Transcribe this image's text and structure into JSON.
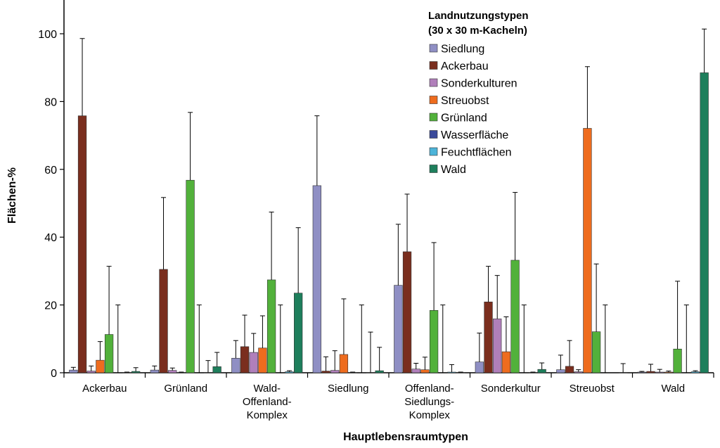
{
  "chart_data": {
    "type": "bar",
    "xlabel": "Hauptlebensraumtypen",
    "ylabel": "Flächen-%",
    "ylim": [
      0,
      110
    ],
    "yticks": [
      0,
      20,
      40,
      60,
      80,
      100
    ],
    "grid": false,
    "legend_position": "top-right",
    "legend_title": [
      "Landnutzungstypen",
      "(30 x 30 m-Kacheln)"
    ],
    "categories": [
      [
        "Ackerbau"
      ],
      [
        "Grünland"
      ],
      [
        "Wald-",
        "Offenland-",
        "Komplex"
      ],
      [
        "Siedlung"
      ],
      [
        "Offenland-",
        "Siedlungs-",
        "Komplex"
      ],
      [
        "Sonderkultur"
      ],
      [
        "Streuobst"
      ],
      [
        "Wald"
      ]
    ],
    "series": [
      {
        "name": "Siedlung",
        "color": "#8f8fc4",
        "values": [
          0.8,
          0.8,
          4.3,
          55.2,
          25.8,
          3.2,
          0.9,
          0.2
        ],
        "errors": [
          0.8,
          1.2,
          5.2,
          20.6,
          18.0,
          8.5,
          4.3,
          0.2
        ]
      },
      {
        "name": "Ackerbau",
        "color": "#7a2e1e",
        "values": [
          75.8,
          30.5,
          7.7,
          0.5,
          35.7,
          20.9,
          1.9,
          0.4
        ],
        "errors": [
          22.8,
          21.2,
          9.3,
          4.2,
          17.0,
          10.5,
          7.6,
          2.1
        ]
      },
      {
        "name": "Sonderkulturen",
        "color": "#b07fba",
        "values": [
          0.5,
          0.7,
          6.0,
          0.7,
          1.1,
          15.9,
          0.3,
          0.2
        ],
        "errors": [
          1.5,
          0.7,
          5.6,
          5.8,
          1.7,
          12.8,
          0.6,
          0.8
        ]
      },
      {
        "name": "Streuobst",
        "color": "#ee6c1e",
        "values": [
          3.7,
          0.1,
          7.3,
          5.4,
          0.9,
          6.2,
          72.1,
          0.2
        ],
        "errors": [
          5.5,
          0.1,
          9.5,
          16.4,
          3.7,
          10.3,
          18.2,
          0.3
        ]
      },
      {
        "name": "Grünland",
        "color": "#52b13b",
        "values": [
          11.3,
          56.8,
          27.4,
          0.1,
          18.4,
          33.2,
          12.1,
          7.0
        ],
        "errors": [
          20.1,
          20.0,
          20.0,
          0.1,
          20.0,
          20.0,
          20.0,
          20.0
        ]
      },
      {
        "name": "Wasserfläche",
        "color": "#3a4a9a",
        "values": [
          0.0,
          0.0,
          0.0,
          0.0,
          0.0,
          0.0,
          0.0,
          0.0
        ],
        "errors": [
          20.0,
          20.0,
          20.0,
          20.0,
          20.0,
          20.0,
          20.0,
          20.0
        ]
      },
      {
        "name": "Feuchtflächen",
        "color": "#4db4d9",
        "values": [
          0.1,
          0.1,
          0.3,
          0.1,
          0.2,
          0.1,
          0.0,
          0.3
        ],
        "errors": [
          0.1,
          3.5,
          0.3,
          11.9,
          2.2,
          0.1,
          0.0,
          0.3
        ]
      },
      {
        "name": "Wald",
        "color": "#1e7f5c",
        "values": [
          0.4,
          1.8,
          23.5,
          0.6,
          0.1,
          1.0,
          0.1,
          88.5
        ],
        "errors": [
          1.1,
          4.2,
          19.3,
          6.9,
          0.1,
          1.9,
          2.6,
          12.9
        ]
      }
    ]
  }
}
